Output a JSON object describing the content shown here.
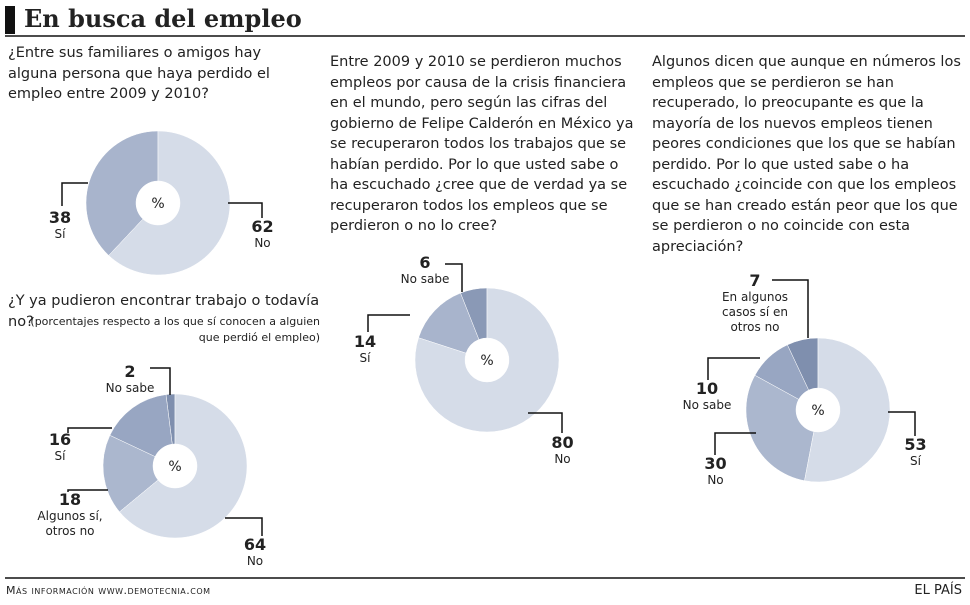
{
  "title": "En busca del empleo",
  "chart_data": [
    {
      "type": "pie",
      "title": "¿Entre sus familiares o amigos hay alguna persona que haya perdido el empleo entre 2009 y 2010?",
      "center_label": "%",
      "categories": [
        "Sí",
        "No"
      ],
      "values": [
        38,
        62
      ],
      "colors": [
        "#a8b4cc",
        "#d5dce8"
      ]
    },
    {
      "type": "pie",
      "title": "¿Y ya pudieron encontrar trabajo o todavía no?",
      "subtitle": "(porcentajes respecto a los que sí conocen a alguien que perdió el empleo)",
      "center_label": "%",
      "categories": [
        "No sabe",
        "Sí",
        "Algunos sí, otros no",
        "No"
      ],
      "values": [
        2,
        16,
        18,
        64
      ],
      "colors": [
        "#7f8fae",
        "#98a6c2",
        "#abb7ce",
        "#d5dce8"
      ]
    },
    {
      "type": "pie",
      "title": "Entre 2009 y 2010 se perdieron muchos empleos por causa de la crisis financiera en el mundo, pero según las cifras del gobierno de Felipe Calderón en México ya se recuperaron todos los trabajos que se habían perdido. Por lo que usted sabe o ha escuchado ¿cree que de verdad ya se recuperaron todos los empleos que se perdieron o no lo cree?",
      "center_label": "%",
      "categories": [
        "No sabe",
        "Sí",
        "No"
      ],
      "values": [
        6,
        14,
        80
      ],
      "colors": [
        "#8a99b6",
        "#a8b4cc",
        "#d5dce8"
      ]
    },
    {
      "type": "pie",
      "title": "Algunos dicen que aunque en números los empleos que se perdieron se han recuperado, lo preocupante es que la mayoría de los nuevos empleos tienen peores condiciones que los que se habían perdido. Por lo que usted sabe o ha escuchado ¿coincide con que los empleos que se han creado están peor que los que se perdieron o no coincide con esta apreciación?",
      "center_label": "%",
      "categories": [
        "En algunos casos sí en otros no",
        "No sabe",
        "No",
        "Sí"
      ],
      "values": [
        7,
        10,
        30,
        53
      ],
      "colors": [
        "#7f8fae",
        "#98a6c2",
        "#abb7ce",
        "#d5dce8"
      ]
    }
  ],
  "footer": {
    "source": "Más información www.demotecnia.com",
    "brand": "EL PAÍS"
  }
}
